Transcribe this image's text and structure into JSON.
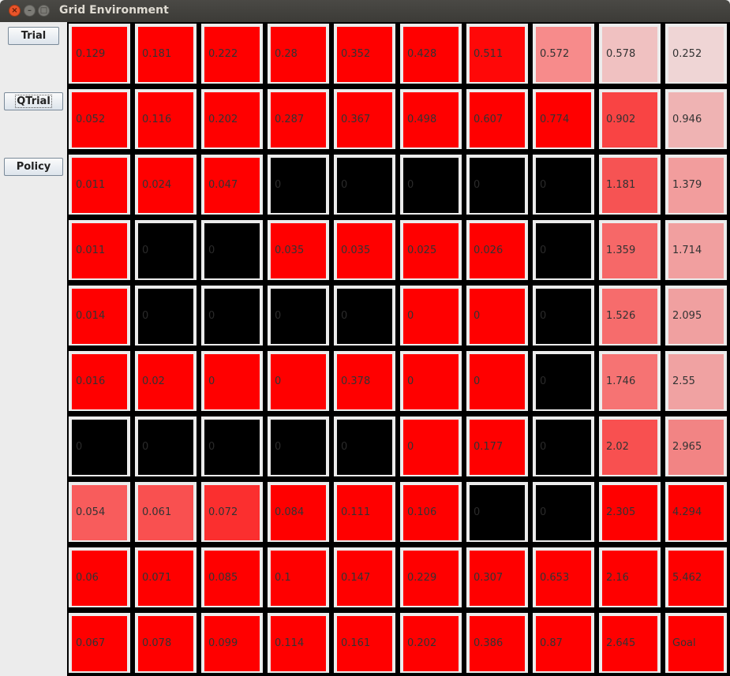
{
  "window": {
    "title": "Grid Environment",
    "close_glyph": "×",
    "min_glyph": "–",
    "max_glyph": "□"
  },
  "sidebar": {
    "trial_label": "Trial",
    "qtrial_label": "QTrial",
    "policy_label": "Policy"
  },
  "grid": {
    "rows": [
      [
        {
          "label": "0.129",
          "color": "#ff0000"
        },
        {
          "label": "0.181",
          "color": "#ff0000"
        },
        {
          "label": "0.222",
          "color": "#ff0000"
        },
        {
          "label": "0.28",
          "color": "#ff0000"
        },
        {
          "label": "0.352",
          "color": "#ff0000"
        },
        {
          "label": "0.428",
          "color": "#ff0000"
        },
        {
          "label": "0.511",
          "color": "#ff0808"
        },
        {
          "label": "0.572",
          "color": "#f78b8b"
        },
        {
          "label": "0.578",
          "color": "#f0c1c1"
        },
        {
          "label": "0.252",
          "color": "#efd5d5"
        }
      ],
      [
        {
          "label": "0.052",
          "color": "#ff0000"
        },
        {
          "label": "0.116",
          "color": "#ff0000"
        },
        {
          "label": "0.202",
          "color": "#ff0000"
        },
        {
          "label": "0.287",
          "color": "#ff0000"
        },
        {
          "label": "0.367",
          "color": "#ff0000"
        },
        {
          "label": "0.498",
          "color": "#ff0000"
        },
        {
          "label": "0.607",
          "color": "#ff0000"
        },
        {
          "label": "0.774",
          "color": "#ff0000"
        },
        {
          "label": "0.902",
          "color": "#f94444"
        },
        {
          "label": "0.946",
          "color": "#efb3b3"
        }
      ],
      [
        {
          "label": "0.011",
          "color": "#ff0000"
        },
        {
          "label": "0.024",
          "color": "#ff0000"
        },
        {
          "label": "0.047",
          "color": "#ff0000"
        },
        {
          "label": "0",
          "color": "#000000"
        },
        {
          "label": "0",
          "color": "#000000"
        },
        {
          "label": "0",
          "color": "#000000"
        },
        {
          "label": "0",
          "color": "#000000"
        },
        {
          "label": "0",
          "color": "#000000"
        },
        {
          "label": "1.181",
          "color": "#f65353"
        },
        {
          "label": "1.379",
          "color": "#f29d9d"
        }
      ],
      [
        {
          "label": "0.011",
          "color": "#ff0000"
        },
        {
          "label": "0",
          "color": "#000000"
        },
        {
          "label": "0",
          "color": "#000000"
        },
        {
          "label": "0.035",
          "color": "#ff0000"
        },
        {
          "label": "0.035",
          "color": "#ff0000"
        },
        {
          "label": "0.025",
          "color": "#ff0000"
        },
        {
          "label": "0.026",
          "color": "#ff0000"
        },
        {
          "label": "0",
          "color": "#000000"
        },
        {
          "label": "1.359",
          "color": "#f66868"
        },
        {
          "label": "1.714",
          "color": "#f19f9f"
        }
      ],
      [
        {
          "label": "0.014",
          "color": "#ff0000"
        },
        {
          "label": "0",
          "color": "#000000"
        },
        {
          "label": "0",
          "color": "#000000"
        },
        {
          "label": "0",
          "color": "#000000"
        },
        {
          "label": "0",
          "color": "#000000"
        },
        {
          "label": "0",
          "color": "#ff0000"
        },
        {
          "label": "0",
          "color": "#ff0000"
        },
        {
          "label": "0",
          "color": "#000000"
        },
        {
          "label": "1.526",
          "color": "#f66c6c"
        },
        {
          "label": "2.095",
          "color": "#f0a0a0"
        }
      ],
      [
        {
          "label": "0.016",
          "color": "#ff0000"
        },
        {
          "label": "0.02",
          "color": "#ff0000"
        },
        {
          "label": "0",
          "color": "#ff0000"
        },
        {
          "label": "0",
          "color": "#ff0000"
        },
        {
          "label": "0.378",
          "color": "#ff0000"
        },
        {
          "label": "0",
          "color": "#ff0000"
        },
        {
          "label": "0",
          "color": "#ff0000"
        },
        {
          "label": "0",
          "color": "#000000"
        },
        {
          "label": "1.746",
          "color": "#f67373"
        },
        {
          "label": "2.55",
          "color": "#f0a2a2"
        }
      ],
      [
        {
          "label": "0",
          "color": "#000000"
        },
        {
          "label": "0",
          "color": "#000000"
        },
        {
          "label": "0",
          "color": "#000000"
        },
        {
          "label": "0",
          "color": "#000000"
        },
        {
          "label": "0",
          "color": "#000000"
        },
        {
          "label": "0",
          "color": "#ff0000"
        },
        {
          "label": "0.177",
          "color": "#ff0000"
        },
        {
          "label": "0",
          "color": "#000000"
        },
        {
          "label": "2.02",
          "color": "#f85050"
        },
        {
          "label": "2.965",
          "color": "#f28484"
        }
      ],
      [
        {
          "label": "0.054",
          "color": "#f85c5c"
        },
        {
          "label": "0.061",
          "color": "#f95050"
        },
        {
          "label": "0.072",
          "color": "#fb2f2f"
        },
        {
          "label": "0.084",
          "color": "#ff0000"
        },
        {
          "label": "0.111",
          "color": "#ff0000"
        },
        {
          "label": "0.106",
          "color": "#ff0000"
        },
        {
          "label": "0",
          "color": "#000000"
        },
        {
          "label": "0",
          "color": "#000000"
        },
        {
          "label": "2.305",
          "color": "#ff0000"
        },
        {
          "label": "4.294",
          "color": "#ff0000"
        }
      ],
      [
        {
          "label": "0.06",
          "color": "#ff0000"
        },
        {
          "label": "0.071",
          "color": "#ff0000"
        },
        {
          "label": "0.085",
          "color": "#ff0000"
        },
        {
          "label": "0.1",
          "color": "#ff0000"
        },
        {
          "label": "0.147",
          "color": "#ff0000"
        },
        {
          "label": "0.229",
          "color": "#ff0000"
        },
        {
          "label": "0.307",
          "color": "#ff0000"
        },
        {
          "label": "0.653",
          "color": "#ff0000"
        },
        {
          "label": "2.16",
          "color": "#ff0000"
        },
        {
          "label": "5.462",
          "color": "#ff0000"
        }
      ],
      [
        {
          "label": "0.067",
          "color": "#ff0000"
        },
        {
          "label": "0.078",
          "color": "#ff0000"
        },
        {
          "label": "0.099",
          "color": "#ff0000"
        },
        {
          "label": "0.114",
          "color": "#ff0000"
        },
        {
          "label": "0.161",
          "color": "#ff0000"
        },
        {
          "label": "0.202",
          "color": "#ff0000"
        },
        {
          "label": "0.386",
          "color": "#ff0000"
        },
        {
          "label": "0.87",
          "color": "#ff0000"
        },
        {
          "label": "2.645",
          "color": "#ff0000"
        },
        {
          "label": "Goal",
          "color": "#ff0000"
        }
      ]
    ]
  }
}
